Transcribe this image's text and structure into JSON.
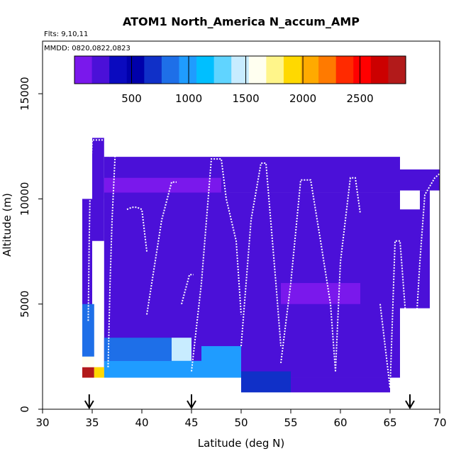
{
  "chart_data": {
    "type": "heatmap",
    "title": "ATOM1 North_America N_accum_AMP",
    "notes": [
      "Flts: 9,10,11",
      "MMDD: 0820,0822,0823"
    ],
    "xlabel": "Latitude (deg N)",
    "ylabel": "Altitude (m)",
    "xlim": [
      30,
      70
    ],
    "ylim": [
      0,
      17500
    ],
    "xticks": [
      30,
      35,
      40,
      45,
      50,
      55,
      60,
      65,
      70
    ],
    "yticks": [
      0,
      5000,
      10000,
      15000
    ],
    "grid": false,
    "colorbar": {
      "range": [
        0,
        2900
      ],
      "ticks": [
        500,
        1000,
        1500,
        2000,
        2500
      ],
      "placement": "top-inside",
      "colors": [
        "#7a18ec",
        "#4b10d8",
        "#0a0abf",
        "#0000aa",
        "#1030c8",
        "#1e6fe8",
        "#1f9cff",
        "#00bfff",
        "#60d4ff",
        "#c8ecff",
        "#fffff0",
        "#fff58a",
        "#ffd900",
        "#ffaa00",
        "#ff7a00",
        "#ff2a00",
        "#ff0000",
        "#cc0000",
        "#b21a1a"
      ]
    },
    "arrows_lat": [
      34.7,
      45.0,
      67.0
    ],
    "heatmap_regions": [
      {
        "x": [
          34.0,
          35.0
        ],
        "y": [
          4000,
          10000
        ],
        "value": 200
      },
      {
        "x": [
          35.0,
          36.2
        ],
        "y": [
          8000,
          12900
        ],
        "value": 180
      },
      {
        "x": [
          36.2,
          66.0
        ],
        "y": [
          10300,
          12000
        ],
        "value": 230
      },
      {
        "x": [
          36.2,
          48.0
        ],
        "y": [
          10000,
          11000
        ],
        "value": 120
      },
      {
        "x": [
          36.2,
          66.0
        ],
        "y": [
          1500,
          10300
        ],
        "value": 240
      },
      {
        "x": [
          66.0,
          70.0
        ],
        "y": [
          10400,
          11400
        ],
        "value": 230
      },
      {
        "x": [
          65.5,
          68.0
        ],
        "y": [
          4800,
          9500
        ],
        "value": 220
      },
      {
        "x": [
          68.0,
          69.0
        ],
        "y": [
          4800,
          10400
        ],
        "value": 200
      },
      {
        "x": [
          54.0,
          62.0
        ],
        "y": [
          5000,
          6000
        ],
        "value": 120
      },
      {
        "x": [
          34.0,
          35.2
        ],
        "y": [
          2500,
          5000
        ],
        "value": 900
      },
      {
        "x": [
          36.2,
          43.0
        ],
        "y": [
          2300,
          3400
        ],
        "value": 850
      },
      {
        "x": [
          43.0,
          45.0
        ],
        "y": [
          1800,
          3400
        ],
        "value": 1400
      },
      {
        "x": [
          36.2,
          46.0
        ],
        "y": [
          1500,
          2300
        ],
        "value": 1000
      },
      {
        "x": [
          46.0,
          50.0
        ],
        "y": [
          1500,
          3000
        ],
        "value": 1000
      },
      {
        "x": [
          50.0,
          55.0
        ],
        "y": [
          800,
          1800
        ],
        "value": 650
      },
      {
        "x": [
          55.0,
          65.0
        ],
        "y": [
          800,
          1500
        ],
        "value": 300
      },
      {
        "x": [
          34.0,
          35.2
        ],
        "y": [
          1500,
          2000
        ],
        "value": 2850
      },
      {
        "x": [
          35.2,
          36.2
        ],
        "y": [
          1500,
          2000
        ],
        "value": 1950
      },
      {
        "x": [
          34.0,
          35.2
        ],
        "y": [
          2000,
          2500
        ],
        "value": 1600
      }
    ],
    "flight_tracks": [
      {
        "lat": [
          34.6,
          34.7,
          34.8,
          35.0,
          35.5,
          36.5,
          36.8
        ],
        "alt": [
          4200,
          8000,
          10800,
          12800,
          12800,
          12800,
          12000
        ]
      },
      {
        "lat": [
          36.6,
          36.8,
          37.0,
          37.3
        ],
        "alt": [
          2000,
          6000,
          9000,
          12000
        ]
      },
      {
        "lat": [
          38.5,
          39.0,
          39.5,
          40.0,
          40.5
        ],
        "alt": [
          9500,
          9600,
          9600,
          9500,
          7500
        ]
      },
      {
        "lat": [
          40.5,
          41.0,
          42.0,
          43.0,
          43.5
        ],
        "alt": [
          4500,
          6000,
          9000,
          10800,
          10800
        ]
      },
      {
        "lat": [
          44.0,
          44.8,
          45.2
        ],
        "alt": [
          5000,
          6400,
          6400
        ]
      },
      {
        "lat": [
          45.0,
          46.0,
          47.0,
          48.0,
          48.5,
          49.5,
          50.0
        ],
        "alt": [
          1800,
          6000,
          11900,
          11900,
          10000,
          8000,
          4500
        ]
      },
      {
        "lat": [
          50.0,
          51.0,
          52.0,
          52.5,
          53.5,
          54.0
        ],
        "alt": [
          3000,
          9000,
          11700,
          11700,
          6000,
          3000
        ]
      },
      {
        "lat": [
          54.0,
          55.0,
          56.0,
          57.0,
          58.0,
          59.0,
          59.5
        ],
        "alt": [
          2200,
          6000,
          10900,
          10900,
          8000,
          5000,
          1800
        ]
      },
      {
        "lat": [
          59.5,
          60.0,
          61.0,
          61.5,
          62.0
        ],
        "alt": [
          1800,
          7000,
          11000,
          11000,
          9300
        ]
      },
      {
        "lat": [
          64.0,
          65.0,
          65.5,
          66.0,
          67.0,
          67.5
        ],
        "alt": [
          5000,
          1000,
          8000,
          8000,
          1800,
          3000
        ]
      },
      {
        "lat": [
          67.5,
          68.0,
          68.5,
          69.0,
          69.5,
          70.0
        ],
        "alt": [
          3000,
          7000,
          10200,
          10600,
          11000,
          11200
        ]
      }
    ]
  }
}
